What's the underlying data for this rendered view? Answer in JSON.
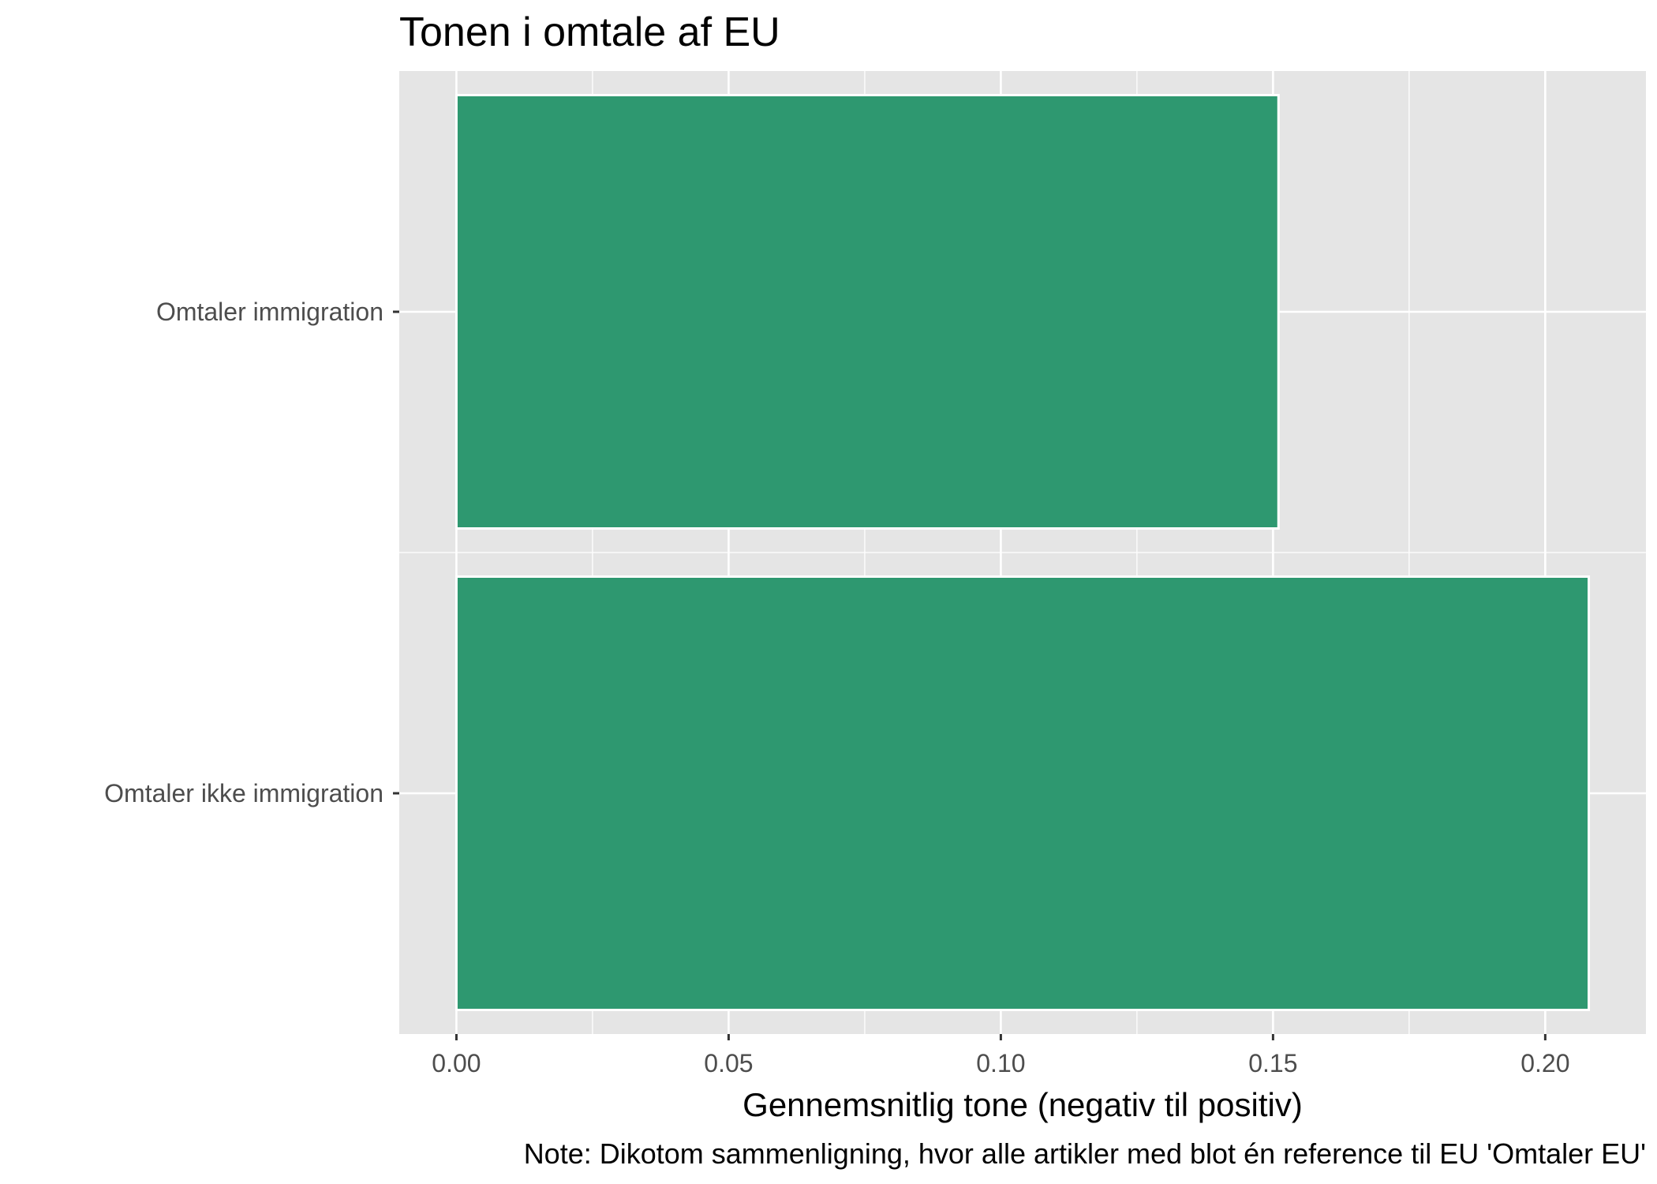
{
  "chart_data": {
    "type": "bar",
    "orientation": "horizontal",
    "title": "Tonen i omtale af EU",
    "xlabel": "Gennemsnitlig tone (negativ til positiv)",
    "ylabel": "",
    "caption": "Note: Dikotom sammenligning, hvor alle artikler med blot én reference til EU 'Omtaler EU'",
    "categories": [
      "Omtaler immigration",
      "Omtaler ikke immigration"
    ],
    "values": [
      0.151,
      0.208
    ],
    "xlim": [
      -0.0105,
      0.2185
    ],
    "x_ticks": [
      0.0,
      0.05,
      0.1,
      0.15,
      0.2
    ],
    "x_tick_labels": [
      "0.00",
      "0.05",
      "0.10",
      "0.15",
      "0.20"
    ],
    "grid": true,
    "legend": "none",
    "colors": {
      "bar_fill": "#2e9870",
      "bar_stroke": "#ffffff",
      "panel_background": "#e5e5e5",
      "grid": "#ffffff"
    }
  }
}
